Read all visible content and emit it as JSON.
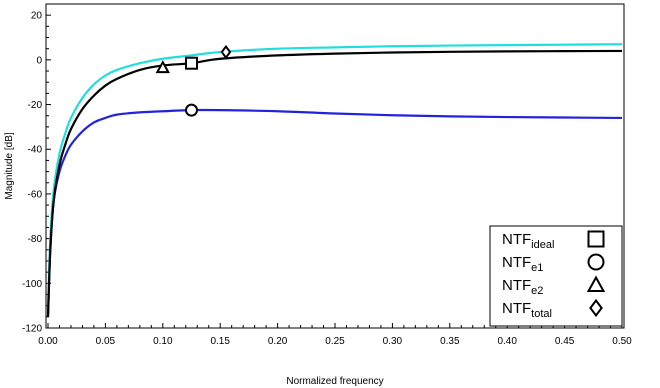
{
  "chart_data": {
    "type": "line",
    "xlabel": "Normalized frequency",
    "ylabel": "Magnitude [dB]",
    "xlim": [
      0.0,
      0.5
    ],
    "ylim": [
      -120,
      25
    ],
    "x_ticks": [
      0.0,
      0.05,
      0.1,
      0.15,
      0.2,
      0.25,
      0.3,
      0.35,
      0.4,
      0.45,
      0.5
    ],
    "x_tick_labels": [
      "0.00",
      "0.05",
      "0.10",
      "0.15",
      "0.20",
      "0.25",
      "0.30",
      "0.35",
      "0.40",
      "0.45",
      "0.50"
    ],
    "y_ticks": [
      -120,
      -100,
      -80,
      -60,
      -40,
      -20,
      0,
      20
    ],
    "y_tick_labels": [
      "-120",
      "-100",
      "-80",
      "-60",
      "-40",
      "-20",
      "0",
      "20"
    ],
    "grid": false,
    "legend_position": "bottom-right",
    "series": [
      {
        "name": "NTF_ideal",
        "color": "#000000",
        "marker": "square",
        "marker_at": [
          0.125,
          -1.5
        ],
        "x": [
          0.0,
          0.002,
          0.005,
          0.01,
          0.015,
          0.02,
          0.03,
          0.04,
          0.05,
          0.06,
          0.08,
          0.1,
          0.125,
          0.15,
          0.2,
          0.25,
          0.3,
          0.35,
          0.4,
          0.45,
          0.5
        ],
        "y": [
          -115,
          -85,
          -63,
          -47,
          -38,
          -31,
          -22,
          -16,
          -11.5,
          -8.5,
          -4.5,
          -2.5,
          -1.5,
          0.5,
          2,
          2.8,
          3.3,
          3.6,
          3.8,
          3.9,
          4
        ]
      },
      {
        "name": "NTF_e1",
        "color": "#2222dd",
        "marker": "circle",
        "marker_at": [
          0.125,
          -22.5
        ],
        "x": [
          0.0,
          0.002,
          0.005,
          0.01,
          0.015,
          0.02,
          0.03,
          0.04,
          0.05,
          0.06,
          0.08,
          0.1,
          0.125,
          0.15,
          0.2,
          0.25,
          0.3,
          0.35,
          0.4,
          0.45,
          0.5
        ],
        "y": [
          -115,
          -85,
          -63,
          -50,
          -43,
          -38,
          -32,
          -28,
          -26,
          -24.5,
          -23.5,
          -23,
          -22.5,
          -22.5,
          -23,
          -24,
          -24.8,
          -25.3,
          -25.6,
          -25.8,
          -26
        ]
      },
      {
        "name": "NTF_e2",
        "color": "#000000",
        "marker": "triangle",
        "marker_at": [
          0.1,
          -3.5
        ],
        "x": [],
        "y": []
      },
      {
        "name": "NTF_total",
        "color": "#22dddd",
        "marker": "diamond",
        "marker_at": [
          0.155,
          3.5
        ],
        "x": [
          0.0,
          0.002,
          0.005,
          0.01,
          0.015,
          0.02,
          0.03,
          0.04,
          0.05,
          0.06,
          0.08,
          0.1,
          0.125,
          0.15,
          0.2,
          0.25,
          0.3,
          0.35,
          0.4,
          0.45,
          0.5
        ],
        "y": [
          -112,
          -80,
          -58,
          -42,
          -33,
          -26,
          -17,
          -11,
          -7,
          -4.5,
          -1.5,
          0.5,
          2,
          3.5,
          5,
          5.6,
          6.1,
          6.4,
          6.6,
          6.8,
          7
        ]
      }
    ],
    "legend": [
      {
        "base": "NTF",
        "sub": "ideal",
        "marker": "square"
      },
      {
        "base": "NTF",
        "sub": "e1",
        "marker": "circle"
      },
      {
        "base": "NTF",
        "sub": "e2",
        "marker": "triangle"
      },
      {
        "base": "NTF",
        "sub": "total",
        "marker": "diamond"
      }
    ]
  }
}
